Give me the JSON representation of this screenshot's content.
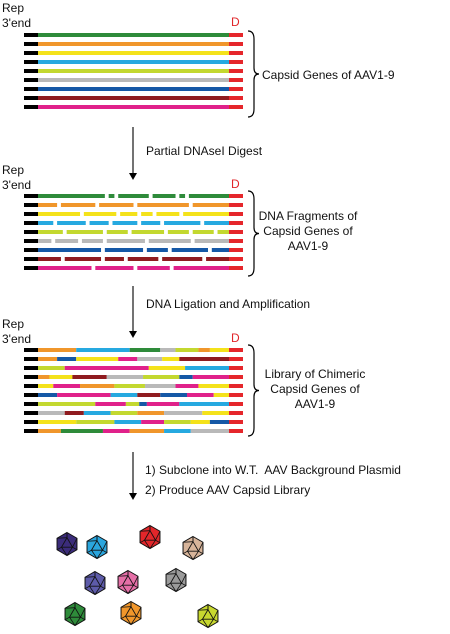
{
  "colors": {
    "rep": "#000000",
    "d": "#e5262b",
    "aav": [
      "#2e8b3a",
      "#f0962b",
      "#f4e21a",
      "#26a9e0",
      "#c3d82f",
      "#b9b9b9",
      "#1558a6",
      "#8f1b1f",
      "#e0218a"
    ]
  },
  "stage1": {
    "rep_label": "Rep\n3'end",
    "d_label": "D",
    "brace_label": "Capsid Genes of AAV1-9"
  },
  "step1": {
    "label": "Partial DNAseI Digest"
  },
  "stage2": {
    "rep_label": "Rep\n3'end",
    "d_label": "D",
    "brace_label": "DNA Fragments of\nCapsid Genes of\nAAV1-9"
  },
  "step2": {
    "label": "DNA Ligation and Amplification"
  },
  "stage3": {
    "rep_label": "Rep\n3'end",
    "d_label": "D",
    "brace_label": "Library of Chimeric\nCapsid Genes of\nAAV1-9"
  },
  "step3": {
    "line1": "1) Subclone into W.T.  AAV Background Plasmid",
    "line2": "2) Produce AAV Capsid Library"
  },
  "capsids": [
    {
      "name": "capsid-purple",
      "color": "#3b2c7a"
    },
    {
      "name": "capsid-blue",
      "color": "#2aa6de"
    },
    {
      "name": "capsid-red",
      "color": "#e2262a"
    },
    {
      "name": "capsid-tan",
      "color": "#d7b49a"
    },
    {
      "name": "capsid-violet",
      "color": "#5d5ba9"
    },
    {
      "name": "capsid-pink",
      "color": "#e56fa7"
    },
    {
      "name": "capsid-gray",
      "color": "#9b9b9b"
    },
    {
      "name": "capsid-green",
      "color": "#2e8b3a"
    },
    {
      "name": "capsid-orange",
      "color": "#f0962b"
    },
    {
      "name": "capsid-lime",
      "color": "#c8d82f"
    }
  ]
}
